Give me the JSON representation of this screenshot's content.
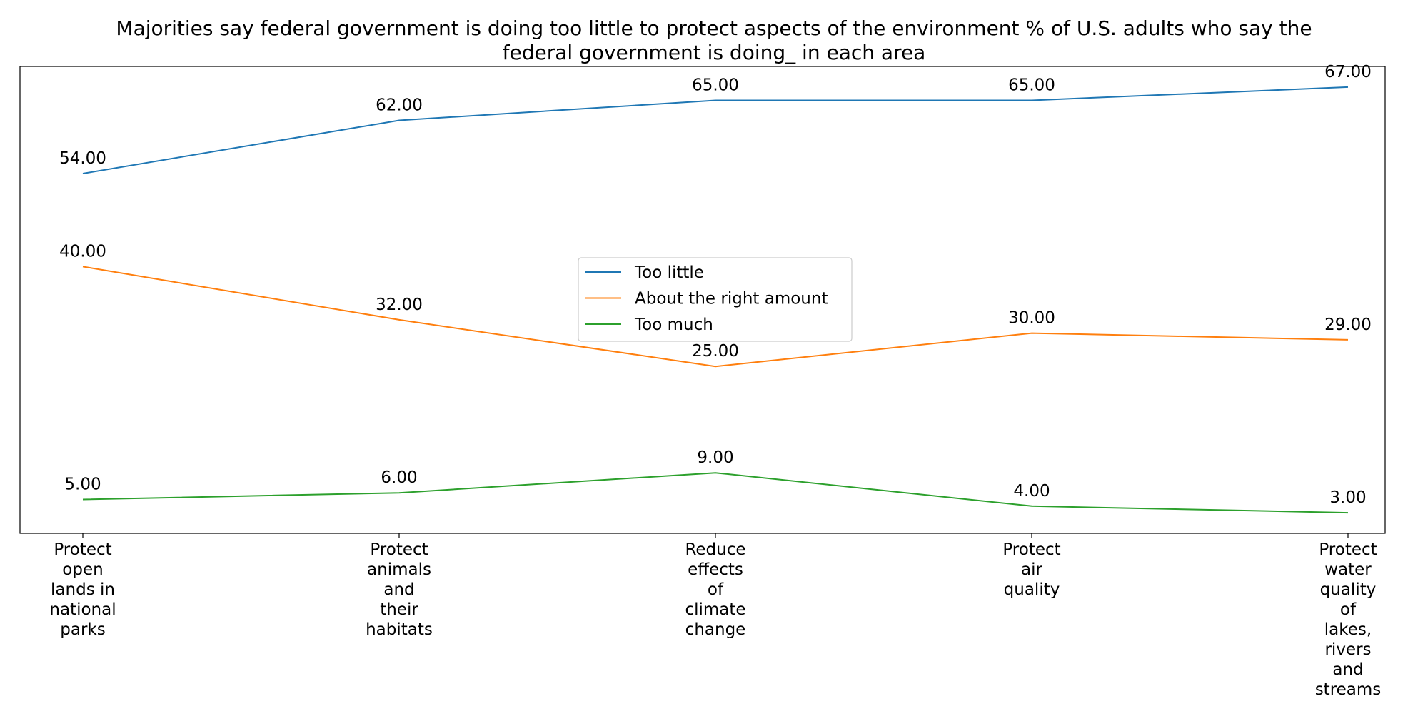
{
  "chart_data": {
    "type": "line",
    "title_lines": [
      "Majorities say federal government is doing too little to protect aspects of the environment % of U.S. adults who say the",
      "federal government is doing_ in each area"
    ],
    "categories": [
      [
        "Protect",
        "open",
        "lands in",
        "national",
        "parks"
      ],
      [
        "Protect",
        "animals",
        "and",
        "their",
        "habitats"
      ],
      [
        "Reduce",
        "effects",
        "of",
        "climate",
        "change"
      ],
      [
        "Protect",
        "air",
        "quality"
      ],
      [
        "Protect",
        "water",
        "quality",
        "of",
        "lakes,",
        "rivers",
        "and",
        "streams"
      ]
    ],
    "series": [
      {
        "name": "Too little",
        "values": [
          54,
          62,
          65,
          65,
          67
        ],
        "color": "#1f77b4"
      },
      {
        "name": "About the right amount",
        "values": [
          40,
          32,
          25,
          30,
          29
        ],
        "color": "#ff7f0e"
      },
      {
        "name": "Too much",
        "values": [
          5,
          6,
          9,
          4,
          3
        ],
        "color": "#2ca02c"
      }
    ],
    "value_format_decimals": 2,
    "ylim": [
      -0.1,
      70.1
    ],
    "grid": false,
    "legend_position": "center"
  }
}
